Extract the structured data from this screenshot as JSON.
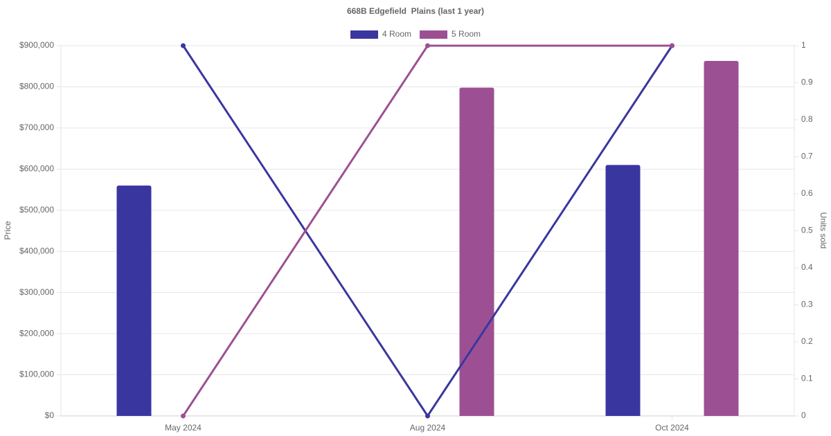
{
  "chart_data": {
    "type": "bar-line",
    "title": "668B Edgefield  Plains (last 1 year)",
    "y_label": "Price",
    "y2_label": "Units sold",
    "categories": [
      "May 2024",
      "Aug 2024",
      "Oct 2024"
    ],
    "series": [
      {
        "name": "4 Room",
        "color": "#3a36a0",
        "values": [
          560000,
          null,
          610000
        ]
      },
      {
        "name": "5 Room",
        "color": "#9c5093",
        "values": [
          null,
          798000,
          863000
        ]
      }
    ],
    "line_series": [
      {
        "color": "#3a36a0",
        "axis": "y2",
        "values": [
          1,
          0,
          1
        ]
      },
      {
        "color": "#9c5093",
        "axis": "y2",
        "values": [
          0,
          1,
          1
        ]
      }
    ],
    "ylim": [
      0,
      900000
    ],
    "yticks": [
      {
        "value": 0,
        "label": "$0"
      },
      {
        "value": 100000,
        "label": "$100,000"
      },
      {
        "value": 200000,
        "label": "$200,000"
      },
      {
        "value": 300000,
        "label": "$300,000"
      },
      {
        "value": 400000,
        "label": "$400,000"
      },
      {
        "value": 500000,
        "label": "$500,000"
      },
      {
        "value": 600000,
        "label": "$600,000"
      },
      {
        "value": 700000,
        "label": "$700,000"
      },
      {
        "value": 800000,
        "label": "$800,000"
      },
      {
        "value": 900000,
        "label": "$900,000"
      }
    ],
    "y2lim": [
      0,
      1
    ],
    "y2ticks": [
      0,
      0.1,
      0.2,
      0.3,
      0.4,
      0.5,
      0.6,
      0.7,
      0.8,
      0.9,
      1
    ],
    "grid": true
  }
}
